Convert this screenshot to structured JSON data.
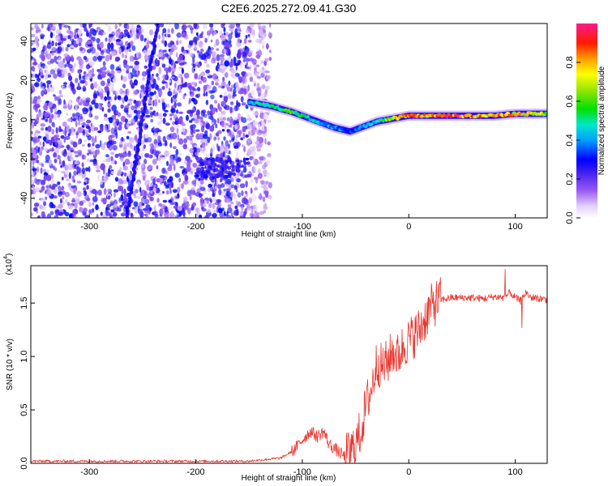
{
  "title": "C2E6.2025.272.09.41.G30",
  "chart_data": [
    {
      "type": "heatmap",
      "name": "spectrogram",
      "xlabel": "Height of straight line (km)",
      "ylabel": "Frequency (Hz)",
      "xlim": [
        -355,
        130
      ],
      "ylim": [
        -50,
        49
      ],
      "x_ticks": [
        -300,
        -200,
        -100,
        0,
        100
      ],
      "x_tick_labels": [
        "-300",
        "-200",
        "-100",
        "0",
        "100"
      ],
      "y_ticks": [
        -40,
        -20,
        0,
        20,
        40
      ],
      "y_tick_labels": [
        "-40",
        "-20",
        "0",
        "20",
        "40"
      ],
      "colorbar": {
        "label": "Normalized spectral amplitude",
        "range": [
          0,
          1
        ],
        "ticks": [
          0.0,
          0.2,
          0.4,
          0.6,
          0.8
        ],
        "tick_labels": [
          "0.0",
          "0.2",
          "0.4",
          "0.6",
          "0.8"
        ]
      },
      "ridge": {
        "x": [
          -150,
          -130,
          -110,
          -90,
          -70,
          -55,
          -45,
          -30,
          -10,
          0,
          20,
          50,
          80,
          100,
          130
        ],
        "y": [
          9,
          7,
          4,
          0,
          -4,
          -6,
          -4,
          -1,
          1,
          2,
          2,
          2,
          2,
          3,
          3
        ],
        "amplitude": [
          0.5,
          0.55,
          0.6,
          0.5,
          0.45,
          0.35,
          0.45,
          0.55,
          0.8,
          0.9,
          0.95,
          0.95,
          0.9,
          0.85,
          0.7
        ]
      },
      "streak": {
        "x": [
          -265,
          -236
        ],
        "y": [
          -50,
          49
        ]
      }
    },
    {
      "type": "line",
      "name": "snr",
      "xlabel": "Height of straight line (km)",
      "ylabel": "SNR (10 * v/v)",
      "y_scale_label": "(x10",
      "y_scale_exponent": "4",
      "xlim": [
        -355,
        130
      ],
      "ylim": [
        0,
        1.85
      ],
      "x_ticks": [
        -300,
        -200,
        -100,
        0,
        100
      ],
      "x_tick_labels": [
        "-300",
        "-200",
        "-100",
        "0",
        "100"
      ],
      "y_ticks": [
        0.0,
        0.5,
        1.0,
        1.5
      ],
      "y_tick_labels": [
        "0.0",
        "0.5",
        "1.0",
        "1.5"
      ],
      "color": "#e8352e",
      "series": [
        {
          "x": [
            -355,
            -250,
            -150,
            -120,
            -108,
            -100,
            -92,
            -86,
            -80,
            -75,
            -70,
            -65,
            -60,
            -55,
            -50,
            -45,
            -40,
            -35,
            -30,
            -25,
            -20,
            -15,
            -10,
            -5,
            0,
            5,
            10,
            15,
            20,
            25,
            30,
            40,
            50,
            60,
            70,
            80,
            90,
            95,
            100,
            105,
            110,
            115,
            120,
            130
          ],
          "y": [
            0.02,
            0.02,
            0.02,
            0.05,
            0.12,
            0.22,
            0.3,
            0.25,
            0.3,
            0.18,
            0.14,
            0.1,
            0.06,
            0.1,
            0.18,
            0.3,
            0.55,
            0.7,
            0.95,
            0.9,
            0.95,
            1.05,
            1.0,
            1.1,
            1.15,
            1.2,
            1.25,
            1.35,
            1.45,
            1.5,
            1.53,
            1.55,
            1.55,
            1.55,
            1.54,
            1.56,
            1.55,
            1.6,
            1.55,
            1.52,
            1.6,
            1.55,
            1.55,
            1.53
          ]
        }
      ]
    }
  ]
}
